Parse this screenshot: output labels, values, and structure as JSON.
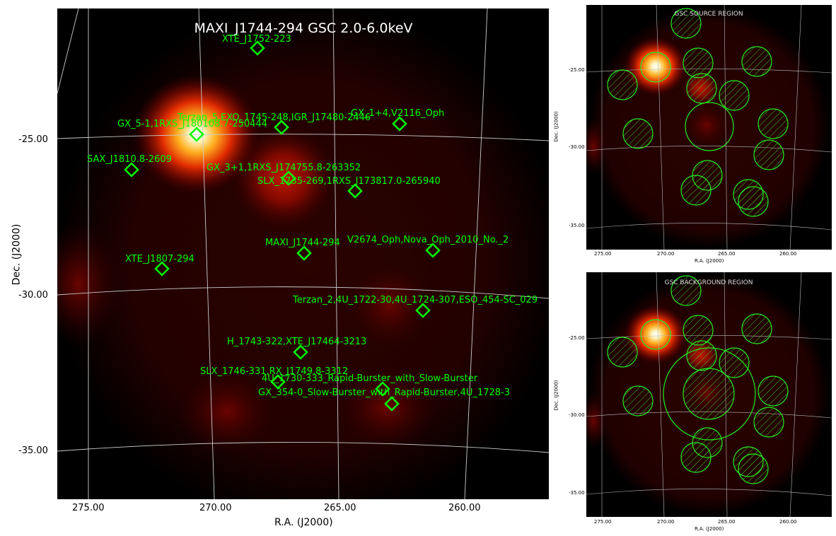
{
  "main": {
    "title": "MAXI_J1744-294 GSC 2.0-6.0keV",
    "xlabel": "R.A. (J2000)",
    "ylabel": "Dec. (J2000)",
    "xticks": [
      "275.00",
      "270.00",
      "265.00",
      "260.00"
    ],
    "yticks": [
      "-25.00",
      "-30.00",
      "-35.00"
    ],
    "sources": [
      {
        "label": "XTE_J1752-223"
      },
      {
        "label": "Terzan_5,EXO_1745-248,IGR_J17480-2446"
      },
      {
        "label": "GX_5-1,1RXS_J180108.7-250444"
      },
      {
        "label": "GX_1+4,V2116_Oph"
      },
      {
        "label": "SAX_J1810.8-2609"
      },
      {
        "label": "GX_3+1,1RXS_J174755.8-263352"
      },
      {
        "label": "SLX_1735-269,1RXS_J173817.0-265940"
      },
      {
        "label": "MAXI_J1744-294"
      },
      {
        "label": "V2674_Oph,Nova_Oph_2010_No._2"
      },
      {
        "label": "XTE_J1807-294"
      },
      {
        "label": "Terzan_2,4U_1722-30,4U_1724-307,ESO_454-SC_029"
      },
      {
        "label": "H_1743-322,XTE_J17464-3213"
      },
      {
        "label": "SLX_1746-331,RX_J1749.8-3312"
      },
      {
        "label": "4U_1730-333_Rapid-Burster_with_Slow-Burster"
      },
      {
        "label": "GX_354-0_Slow-Burster_with_Rapid-Burster,4U_1728-3"
      }
    ],
    "marker_color": "#00ff00"
  },
  "source_region": {
    "title": "GSC SOURCE REGION",
    "xlabel": "R.A. (J2000)",
    "ylabel": "Dec. (J2000)",
    "xticks": [
      "275.00",
      "270.00",
      "265.00",
      "260.00"
    ],
    "yticks": [
      "-25.00",
      "-30.00",
      "-35.00"
    ]
  },
  "background_region": {
    "title": "GSC BACKGROUND REGION",
    "xlabel": "R.A. (J2000)",
    "ylabel": "Dec. (J2000)",
    "xticks": [
      "275.00",
      "270.00",
      "265.00",
      "260.00"
    ],
    "yticks": [
      "-25.00",
      "-30.00",
      "-35.00"
    ]
  }
}
